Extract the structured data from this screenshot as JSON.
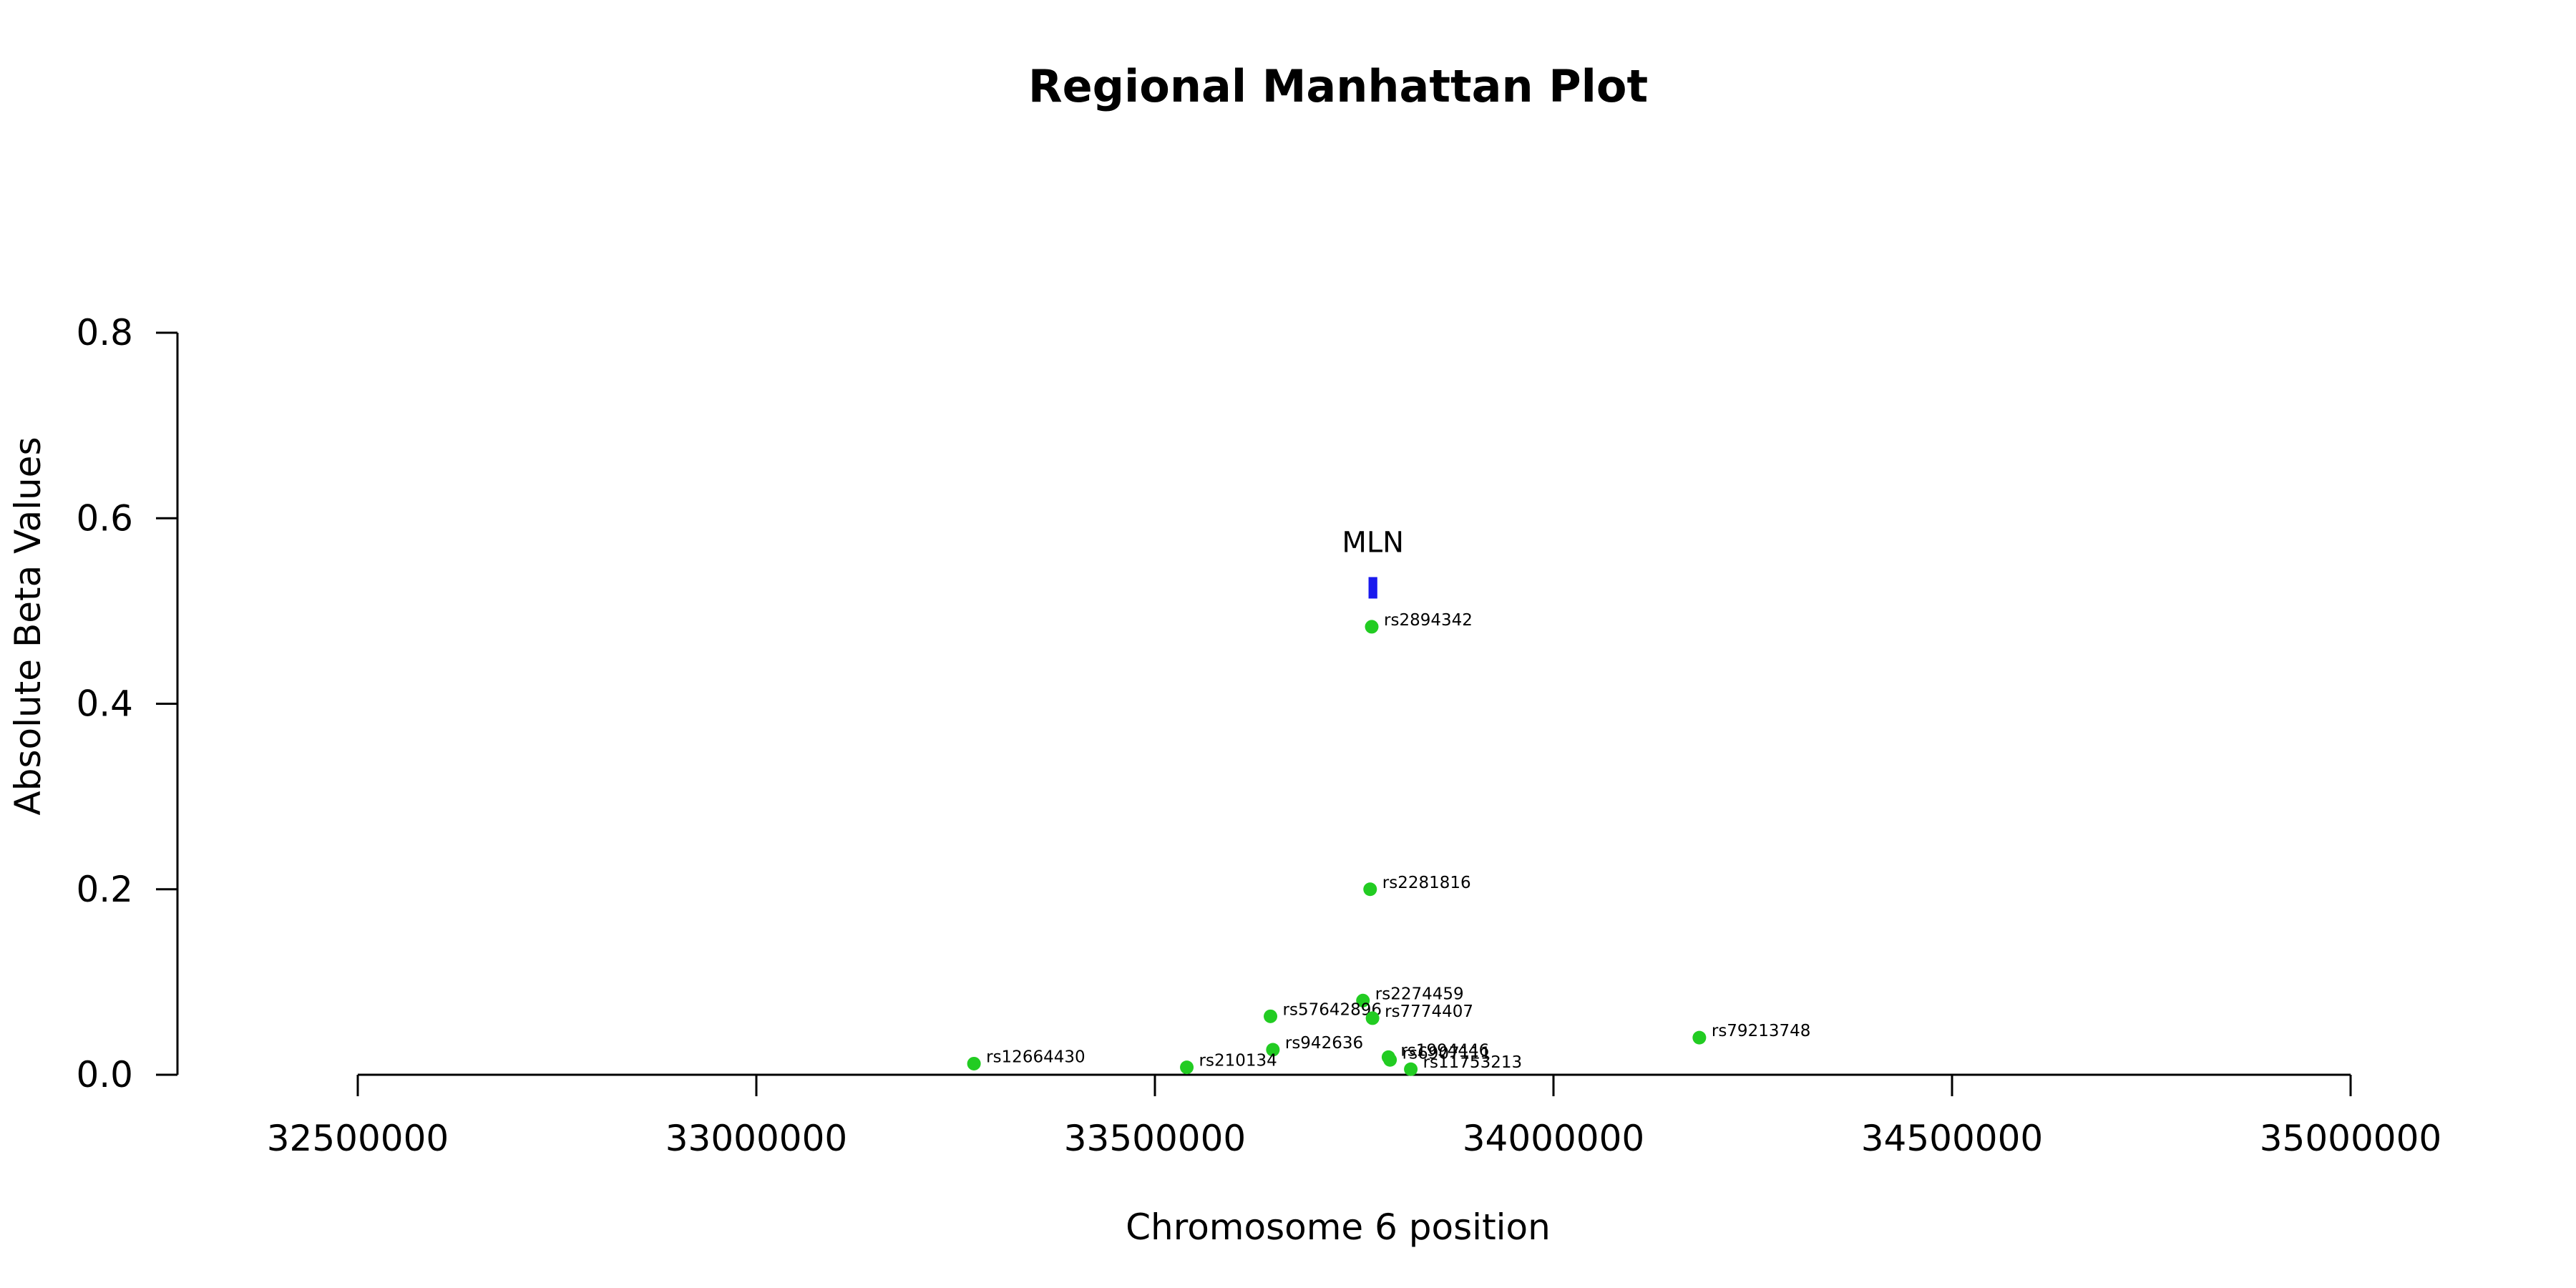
{
  "chart_data": {
    "type": "scatter",
    "title": "Regional Manhattan Plot",
    "xlabel": "Chromosome 6 position",
    "ylabel": "Absolute Beta Values",
    "xlim": [
      32500000,
      35000000
    ],
    "ylim": [
      0,
      0.8
    ],
    "x_ticks": [
      32500000,
      33000000,
      33500000,
      34000000,
      34500000,
      35000000
    ],
    "x_tick_labels": [
      "32500000",
      "33000000",
      "33500000",
      "34000000",
      "34500000",
      "35000000"
    ],
    "y_ticks": [
      0,
      0.2,
      0.4,
      0.6,
      0.8
    ],
    "y_tick_labels": [
      "0.0",
      "0.2",
      "0.4",
      "0.6",
      "0.8"
    ],
    "grid": false,
    "legend": "none",
    "point_color": "#22cc22",
    "gene_color": "#1a1aee",
    "gene": {
      "name": "MLN",
      "start": 33768000,
      "end": 33779000,
      "y": 0.525
    },
    "points": [
      {
        "snp": "rs2894342",
        "x": 33772000,
        "y": 0.483
      },
      {
        "snp": "rs2281816",
        "x": 33770000,
        "y": 0.2
      },
      {
        "snp": "rs2274459",
        "x": 33761000,
        "y": 0.08
      },
      {
        "snp": "rs57642896",
        "x": 33645000,
        "y": 0.063
      },
      {
        "snp": "rs7774407",
        "x": 33773000,
        "y": 0.061
      },
      {
        "snp": "rs79213748",
        "x": 34183000,
        "y": 0.04
      },
      {
        "snp": "rs942636",
        "x": 33648000,
        "y": 0.027
      },
      {
        "snp": "rs12664430",
        "x": 33273000,
        "y": 0.012
      },
      {
        "snp": "rs210134",
        "x": 33540000,
        "y": 0.008
      },
      {
        "snp": "rs1994446",
        "x": 33793000,
        "y": 0.019
      },
      {
        "snp": "rs6907111",
        "x": 33795000,
        "y": 0.016
      },
      {
        "snp": "rs11753213",
        "x": 33821000,
        "y": 0.006
      }
    ]
  }
}
